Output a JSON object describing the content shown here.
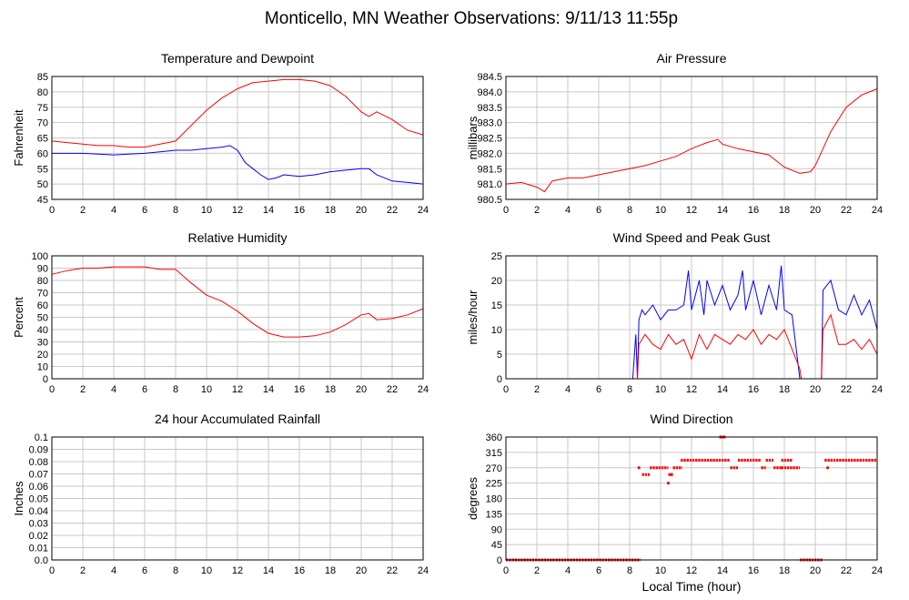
{
  "figure": {
    "title": "Monticello, MN Weather Observations: 9/11/13 11:55p",
    "xlabel": "Local Time (hour)"
  },
  "colors": {
    "primary": "#ff0000",
    "secondary": "#0000ff",
    "grid": "#c8c8c8"
  },
  "chart_data": [
    {
      "id": "temp",
      "type": "line",
      "title": "Temperature and Dewpoint",
      "ylabel": "Fahrenheit",
      "xlim": [
        0,
        24
      ],
      "ylim": [
        45,
        85
      ],
      "xticks": [
        0,
        2,
        4,
        6,
        8,
        10,
        12,
        14,
        16,
        18,
        20,
        22,
        24
      ],
      "yticks": [
        45,
        50,
        55,
        60,
        65,
        70,
        75,
        80,
        85
      ],
      "grid": true,
      "series": [
        {
          "color": "#ff0000",
          "x": [
            0,
            1,
            2,
            3,
            4,
            5,
            6,
            7,
            7.5,
            8,
            9,
            10,
            11,
            12,
            13,
            14,
            15,
            16,
            17,
            18,
            19,
            20,
            20.5,
            21,
            22,
            23,
            24
          ],
          "y": [
            64,
            63.5,
            63,
            62.5,
            62.5,
            62,
            62,
            63,
            63.5,
            64,
            69,
            74,
            78,
            81,
            83,
            83.5,
            84,
            84,
            83.5,
            82,
            78.5,
            73.5,
            72,
            73.5,
            71,
            67.5,
            66
          ]
        },
        {
          "color": "#0000ff",
          "x": [
            0,
            2,
            4,
            6,
            7,
            8,
            9,
            10,
            11,
            11.5,
            12,
            12.5,
            13,
            13.5,
            14,
            14.5,
            15,
            16,
            17,
            18,
            19,
            20,
            20.5,
            21,
            22,
            23,
            24
          ],
          "y": [
            60,
            60,
            59.5,
            60,
            60.5,
            61,
            61,
            61.5,
            62,
            62.5,
            61,
            57,
            55,
            53,
            51.5,
            52,
            53,
            52.5,
            53,
            54,
            54.5,
            55,
            55,
            53,
            51,
            50.5,
            50
          ]
        }
      ]
    },
    {
      "id": "pressure",
      "type": "line",
      "title": "Air Pressure",
      "ylabel": "millibars",
      "xlim": [
        0,
        24
      ],
      "ylim": [
        980.5,
        984.5
      ],
      "xticks": [
        0,
        2,
        4,
        6,
        8,
        10,
        12,
        14,
        16,
        18,
        20,
        22,
        24
      ],
      "yticks": [
        "980.5",
        "981.0",
        "981.5",
        "982.0",
        "982.5",
        "983.0",
        "983.5",
        "984.0",
        "984.5"
      ],
      "grid": true,
      "series": [
        {
          "color": "#ff0000",
          "x": [
            0,
            1,
            2,
            2.5,
            3,
            4,
            5,
            6,
            7,
            8,
            9,
            10,
            11,
            12,
            13,
            13.7,
            14,
            15,
            16,
            17,
            18,
            19,
            19.7,
            20,
            21,
            22,
            23,
            24
          ],
          "y": [
            981,
            981.05,
            980.9,
            980.75,
            981.1,
            981.2,
            981.2,
            981.3,
            981.4,
            981.5,
            981.6,
            981.75,
            981.9,
            982.15,
            982.35,
            982.45,
            982.3,
            982.15,
            982.05,
            981.95,
            981.55,
            981.35,
            981.4,
            981.6,
            982.7,
            983.5,
            983.9,
            984.1
          ]
        }
      ]
    },
    {
      "id": "humidity",
      "type": "line",
      "title": "Relative Humidity",
      "ylabel": "Percent",
      "xlim": [
        0,
        24
      ],
      "ylim": [
        0,
        100
      ],
      "xticks": [
        0,
        2,
        4,
        6,
        8,
        10,
        12,
        14,
        16,
        18,
        20,
        22,
        24
      ],
      "yticks": [
        0,
        10,
        20,
        30,
        40,
        50,
        60,
        70,
        80,
        90,
        100
      ],
      "grid": true,
      "series": [
        {
          "color": "#ff0000",
          "x": [
            0,
            1,
            2,
            3,
            4,
            5,
            6,
            7,
            8,
            9,
            10,
            11,
            12,
            13,
            14,
            15,
            16,
            17,
            18,
            19,
            20,
            20.5,
            21,
            22,
            23,
            24
          ],
          "y": [
            85,
            88,
            90,
            90,
            91,
            91,
            91,
            89,
            89,
            78,
            68,
            63,
            55,
            45,
            37,
            34,
            34,
            35,
            38,
            44,
            52,
            53,
            48,
            49,
            52,
            57
          ]
        }
      ]
    },
    {
      "id": "wind",
      "type": "line",
      "title": "Wind Speed and Peak Gust",
      "ylabel": "miles/hour",
      "xlim": [
        0,
        24
      ],
      "ylim": [
        0,
        25
      ],
      "xticks": [
        0,
        2,
        4,
        6,
        8,
        10,
        12,
        14,
        16,
        18,
        20,
        22,
        24
      ],
      "yticks": [
        0,
        5,
        10,
        15,
        20,
        25
      ],
      "grid": true,
      "series": [
        {
          "color": "#0000ff",
          "x": [
            0,
            8.2,
            8.4,
            8.5,
            8.6,
            8.8,
            9,
            9.5,
            10,
            10.5,
            11,
            11.5,
            11.8,
            12,
            12.5,
            12.8,
            13,
            13.5,
            14,
            14.5,
            15,
            15.3,
            15.5,
            16,
            16.5,
            17,
            17.5,
            17.8,
            18,
            18.5,
            19,
            19.1,
            20.4,
            20.5,
            21,
            21.5,
            22,
            22.5,
            23,
            23.5,
            24
          ],
          "y": [
            0,
            0,
            9,
            0,
            12,
            14,
            13,
            15,
            12,
            14,
            14,
            15,
            22,
            14,
            20,
            13,
            20,
            15,
            19,
            14,
            17,
            22,
            14,
            20,
            13,
            19,
            14,
            23,
            14,
            13,
            0,
            0,
            0,
            18,
            20,
            14,
            13,
            17,
            13,
            16,
            10
          ]
        },
        {
          "color": "#ff0000",
          "x": [
            0,
            8.5,
            8.6,
            9,
            9.5,
            10,
            10.5,
            11,
            11.5,
            12,
            12.5,
            13,
            13.5,
            14,
            14.5,
            15,
            15.5,
            16,
            16.5,
            17,
            17.5,
            18,
            18.5,
            19,
            19.1,
            20.4,
            20.5,
            21,
            21.5,
            22,
            22.5,
            23,
            23.5,
            24
          ],
          "y": [
            0,
            0,
            7,
            9,
            7,
            6,
            9,
            7,
            8,
            4,
            9,
            6,
            9,
            8,
            7,
            9,
            8,
            10,
            7,
            9,
            8,
            10,
            6,
            2,
            0,
            0,
            10,
            13,
            7,
            7,
            8,
            6,
            8,
            5
          ]
        }
      ]
    },
    {
      "id": "rain",
      "type": "line",
      "title": "24 hour Accumulated Rainfall",
      "ylabel": "Inches",
      "xlim": [
        0,
        24
      ],
      "ylim": [
        0,
        0.1
      ],
      "xticks": [
        0,
        2,
        4,
        6,
        8,
        10,
        12,
        14,
        16,
        18,
        20,
        22,
        24
      ],
      "yticks": [
        "0.0",
        "0.01",
        "0.02",
        "0.03",
        "0.04",
        "0.05",
        "0.06",
        "0.07",
        "0.08",
        "0.09",
        "0.1"
      ],
      "grid": true,
      "series": [
        {
          "color": "#ff0000",
          "x": [
            0,
            24
          ],
          "y": [
            0,
            0
          ]
        }
      ]
    },
    {
      "id": "direction",
      "type": "scatter",
      "title": "Wind Direction",
      "ylabel": "degrees",
      "xlim": [
        0,
        24
      ],
      "ylim": [
        0,
        360
      ],
      "xticks": [
        0,
        2,
        4,
        6,
        8,
        10,
        12,
        14,
        16,
        18,
        20,
        22,
        24
      ],
      "yticks": [
        0,
        45,
        90,
        135,
        180,
        225,
        270,
        315,
        360
      ],
      "grid": true,
      "segments": [
        {
          "x": [
            0,
            8.7
          ],
          "y": 0
        },
        {
          "x": [
            8.6,
            8.6
          ],
          "y": 270
        },
        {
          "x": [
            8.8,
            9.3
          ],
          "y": 250
        },
        {
          "x": [
            9.3,
            10.5
          ],
          "y": 270
        },
        {
          "x": [
            10.5,
            10.8
          ],
          "y": 250
        },
        {
          "x": [
            10.8,
            11.4
          ],
          "y": 270
        },
        {
          "x": [
            11.3,
            14.5
          ],
          "y": 292
        },
        {
          "x": [
            13.8,
            14.2
          ],
          "y": 360
        },
        {
          "x": [
            14.5,
            15.0
          ],
          "y": 270
        },
        {
          "x": [
            15.0,
            16.5
          ],
          "y": 292
        },
        {
          "x": [
            16.5,
            16.8
          ],
          "y": 270
        },
        {
          "x": [
            16.8,
            17.3
          ],
          "y": 292
        },
        {
          "x": [
            17.3,
            17.8
          ],
          "y": 270
        },
        {
          "x": [
            17.8,
            19.0
          ],
          "y": 270
        },
        {
          "x": [
            17.8,
            18.5
          ],
          "y": 292
        },
        {
          "x": [
            19.0,
            20.5
          ],
          "y": 0
        },
        {
          "x": [
            20.6,
            24.0
          ],
          "y": 292
        },
        {
          "x": [
            20.8,
            20.8
          ],
          "y": 270
        }
      ],
      "points": [
        {
          "x": 10.5,
          "y": 225
        },
        {
          "x": 10.7,
          "y": 250
        },
        {
          "x": 13.9,
          "y": 360
        },
        {
          "x": 14.1,
          "y": 360
        }
      ]
    }
  ]
}
